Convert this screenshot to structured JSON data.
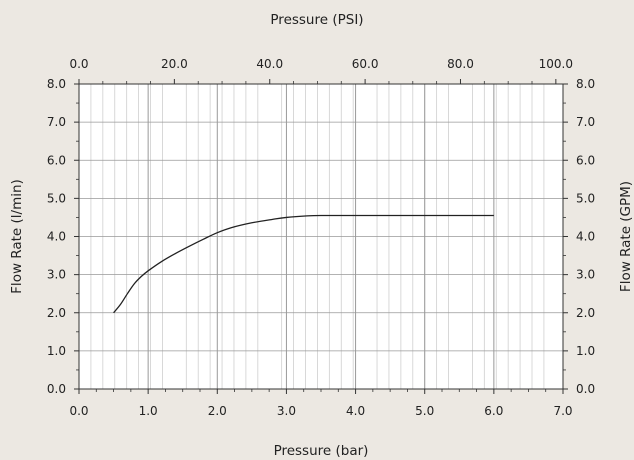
{
  "chart_data": {
    "type": "line",
    "xlabel": "Pressure (bar)",
    "x2label": "Pressure (PSI)",
    "ylabel": "Flow Rate (l/min)",
    "y2label": "Flow Rate (GPM)",
    "xlim": [
      0,
      7
    ],
    "ylim": [
      0,
      8
    ],
    "x2lim": [
      0,
      101.5
    ],
    "x_ticks": [
      "0.0",
      "1.0",
      "2.0",
      "3.0",
      "4.0",
      "5.0",
      "6.0",
      "7.0"
    ],
    "x2_ticks": [
      "0.0",
      "20.0",
      "40.0",
      "60.0",
      "80.0",
      "100.0"
    ],
    "y_ticks": [
      "0.0",
      "1.0",
      "2.0",
      "3.0",
      "4.0",
      "5.0",
      "6.0",
      "7.0",
      "8.0"
    ],
    "y2_ticks": [
      "0.0",
      "1.0",
      "2.0",
      "3.0",
      "4.0",
      "5.0",
      "6.0",
      "7.0",
      "8.0"
    ],
    "grid": true,
    "colors": {
      "background": "#ece8e2",
      "plot_background": "#ffffff",
      "major_grid": "#999999",
      "minor_grid": "#cfcfcf",
      "line": "#222222"
    },
    "series": [
      {
        "x": [
          0.5,
          0.6,
          0.7,
          0.8,
          0.9,
          1.0,
          1.2,
          1.4,
          1.6,
          1.8,
          2.0,
          2.2,
          2.5,
          2.8,
          3.0,
          3.3,
          3.5,
          4.0,
          4.5,
          5.0,
          5.5,
          6.0
        ],
        "y": [
          2.0,
          2.22,
          2.5,
          2.76,
          2.95,
          3.1,
          3.35,
          3.56,
          3.75,
          3.93,
          4.1,
          4.23,
          4.36,
          4.45,
          4.5,
          4.54,
          4.55,
          4.55,
          4.55,
          4.55,
          4.55,
          4.55
        ]
      }
    ]
  }
}
